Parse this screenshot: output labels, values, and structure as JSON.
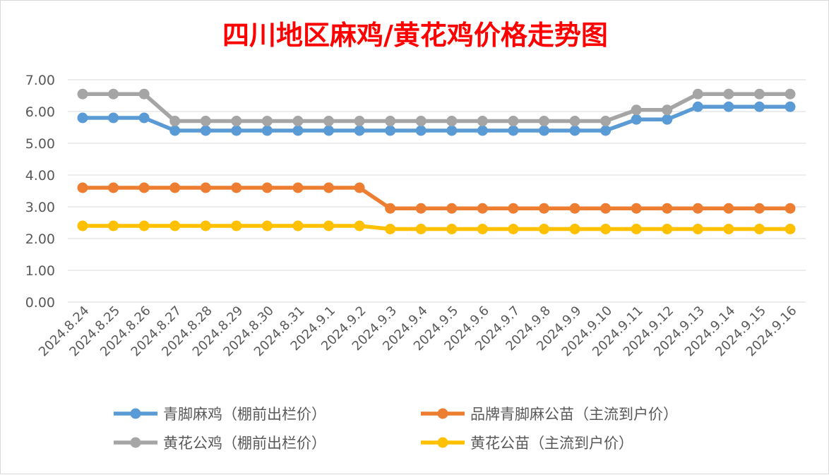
{
  "chart_data": {
    "type": "line",
    "title": "四川地区麻鸡/黄花鸡价格走势图",
    "xlabel": "",
    "ylabel": "",
    "ylim": [
      0,
      7
    ],
    "y_ticks": [
      "0.00",
      "1.00",
      "2.00",
      "3.00",
      "4.00",
      "5.00",
      "6.00",
      "7.00"
    ],
    "grid": true,
    "legend_position": "bottom",
    "categories": [
      "2024.8.24",
      "2024.8.25",
      "2024.8.26",
      "2024.8.27",
      "2024.8.28",
      "2024.8.29",
      "2024.8.30",
      "2024.8.31",
      "2024.9.1",
      "2024.9.2",
      "2024.9.3",
      "2024.9.4",
      "2024.9.5",
      "2024.9.6",
      "2024.9.7",
      "2024.9.8",
      "2024.9.9",
      "2024.9.10",
      "2024.9.11",
      "2024.9.12",
      "2024.9.13",
      "2024.9.14",
      "2024.9.15",
      "2024.9.16"
    ],
    "series": [
      {
        "name": "青脚麻鸡（棚前出栏价）",
        "color": "#5b9bd5",
        "values": [
          5.8,
          5.8,
          5.8,
          5.4,
          5.4,
          5.4,
          5.4,
          5.4,
          5.4,
          5.4,
          5.4,
          5.4,
          5.4,
          5.4,
          5.4,
          5.4,
          5.4,
          5.4,
          5.75,
          5.75,
          6.15,
          6.15,
          6.15,
          6.15
        ]
      },
      {
        "name": "品牌青脚麻公苗（主流到户价）",
        "color": "#ed7d31",
        "values": [
          3.6,
          3.6,
          3.6,
          3.6,
          3.6,
          3.6,
          3.6,
          3.6,
          3.6,
          3.6,
          2.95,
          2.95,
          2.95,
          2.95,
          2.95,
          2.95,
          2.95,
          2.95,
          2.95,
          2.95,
          2.95,
          2.95,
          2.95,
          2.95
        ]
      },
      {
        "name": "黄花公鸡（棚前出栏价）",
        "color": "#a5a5a5",
        "values": [
          6.55,
          6.55,
          6.55,
          5.7,
          5.7,
          5.7,
          5.7,
          5.7,
          5.7,
          5.7,
          5.7,
          5.7,
          5.7,
          5.7,
          5.7,
          5.7,
          5.7,
          5.7,
          6.05,
          6.05,
          6.55,
          6.55,
          6.55,
          6.55
        ]
      },
      {
        "name": "黄花公苗（主流到户价）",
        "color": "#ffc000",
        "values": [
          2.4,
          2.4,
          2.4,
          2.4,
          2.4,
          2.4,
          2.4,
          2.4,
          2.4,
          2.4,
          2.3,
          2.3,
          2.3,
          2.3,
          2.3,
          2.3,
          2.3,
          2.3,
          2.3,
          2.3,
          2.3,
          2.3,
          2.3,
          2.3
        ]
      }
    ]
  }
}
